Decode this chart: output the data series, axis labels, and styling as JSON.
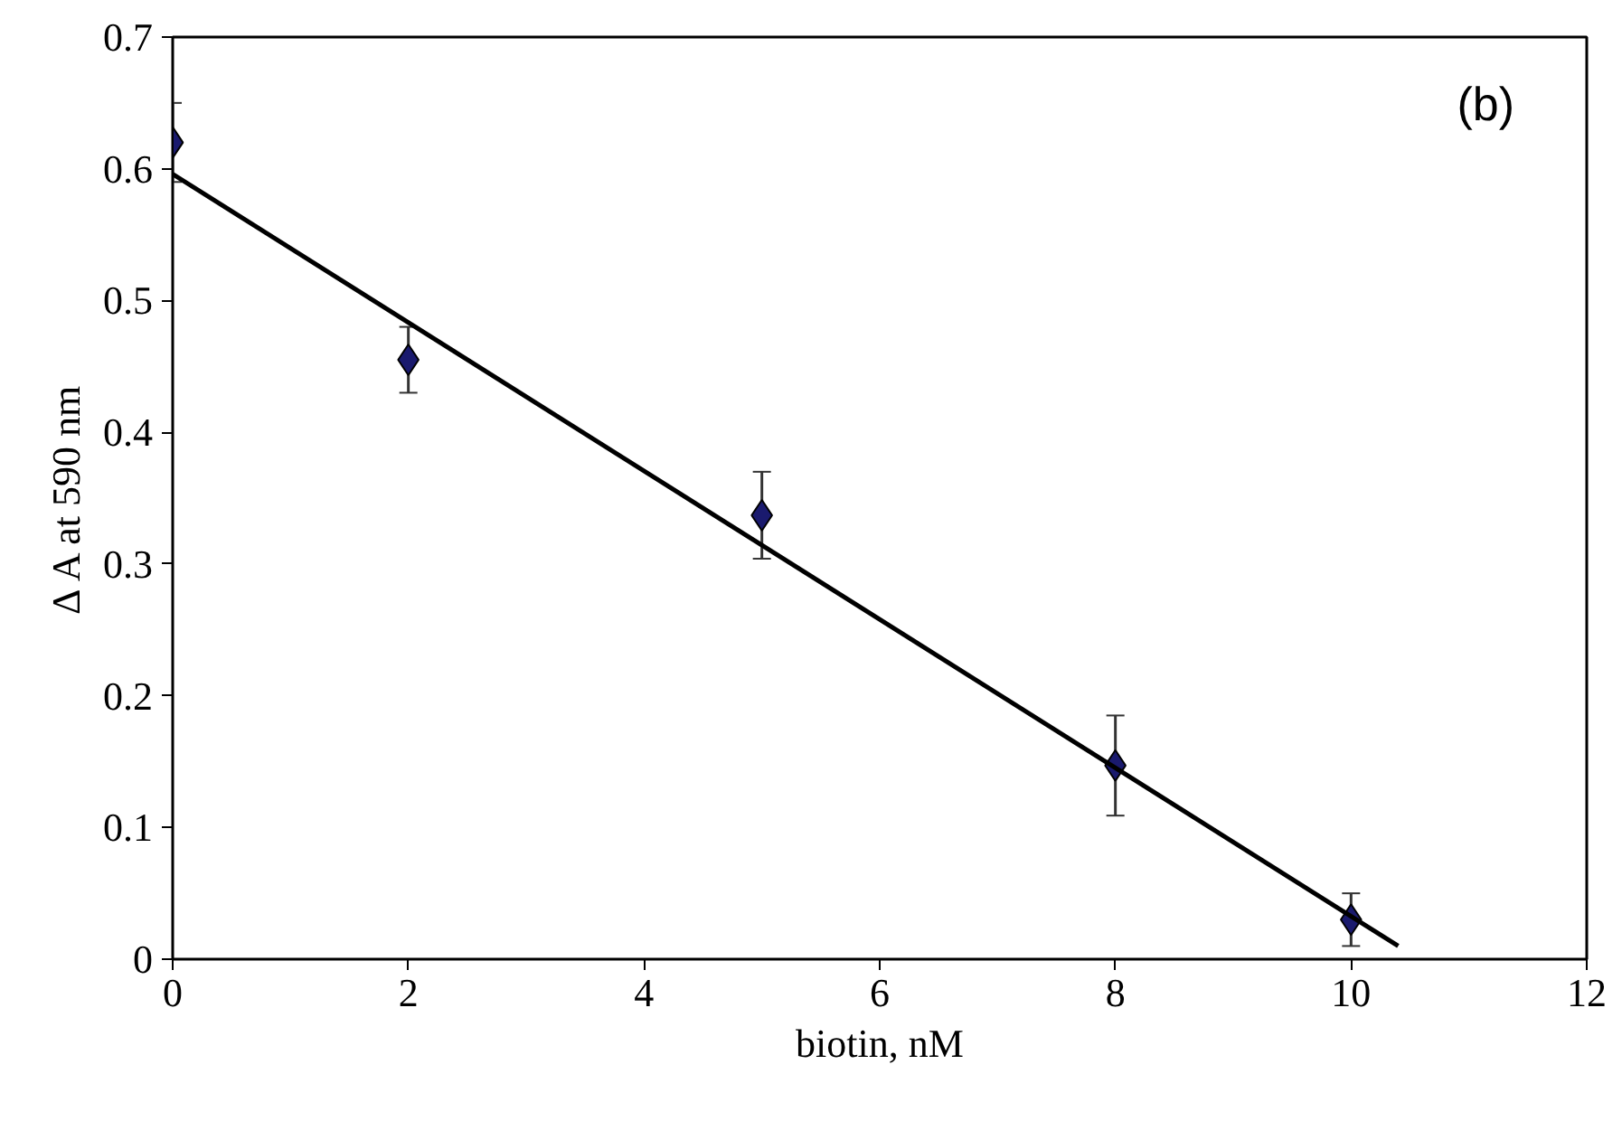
{
  "chart_data": {
    "type": "scatter",
    "xlabel": "biotin, nM",
    "ylabel": "Δ A at 590 nm",
    "annotations": [
      "(b)"
    ],
    "xlim": [
      0,
      12
    ],
    "ylim": [
      0,
      0.7
    ],
    "xticks": [
      0,
      2,
      4,
      6,
      8,
      10,
      12
    ],
    "yticks": [
      0,
      0.1,
      0.2,
      0.3,
      0.4,
      0.5,
      0.6,
      0.7
    ],
    "series": [
      {
        "color": "#1a1a6e",
        "marker": "diamond",
        "x": [
          0,
          2,
          5,
          8,
          10
        ],
        "values": [
          0.62,
          0.455,
          0.337,
          0.147,
          0.03
        ],
        "errors": [
          0.03,
          0.025,
          0.033,
          0.038,
          0.02
        ]
      },
      {
        "type": "line",
        "color": "#000000",
        "marker": "none",
        "line_style": "solid",
        "x": [
          0,
          10.4
        ],
        "values": [
          0.596,
          0.01
        ]
      }
    ]
  }
}
